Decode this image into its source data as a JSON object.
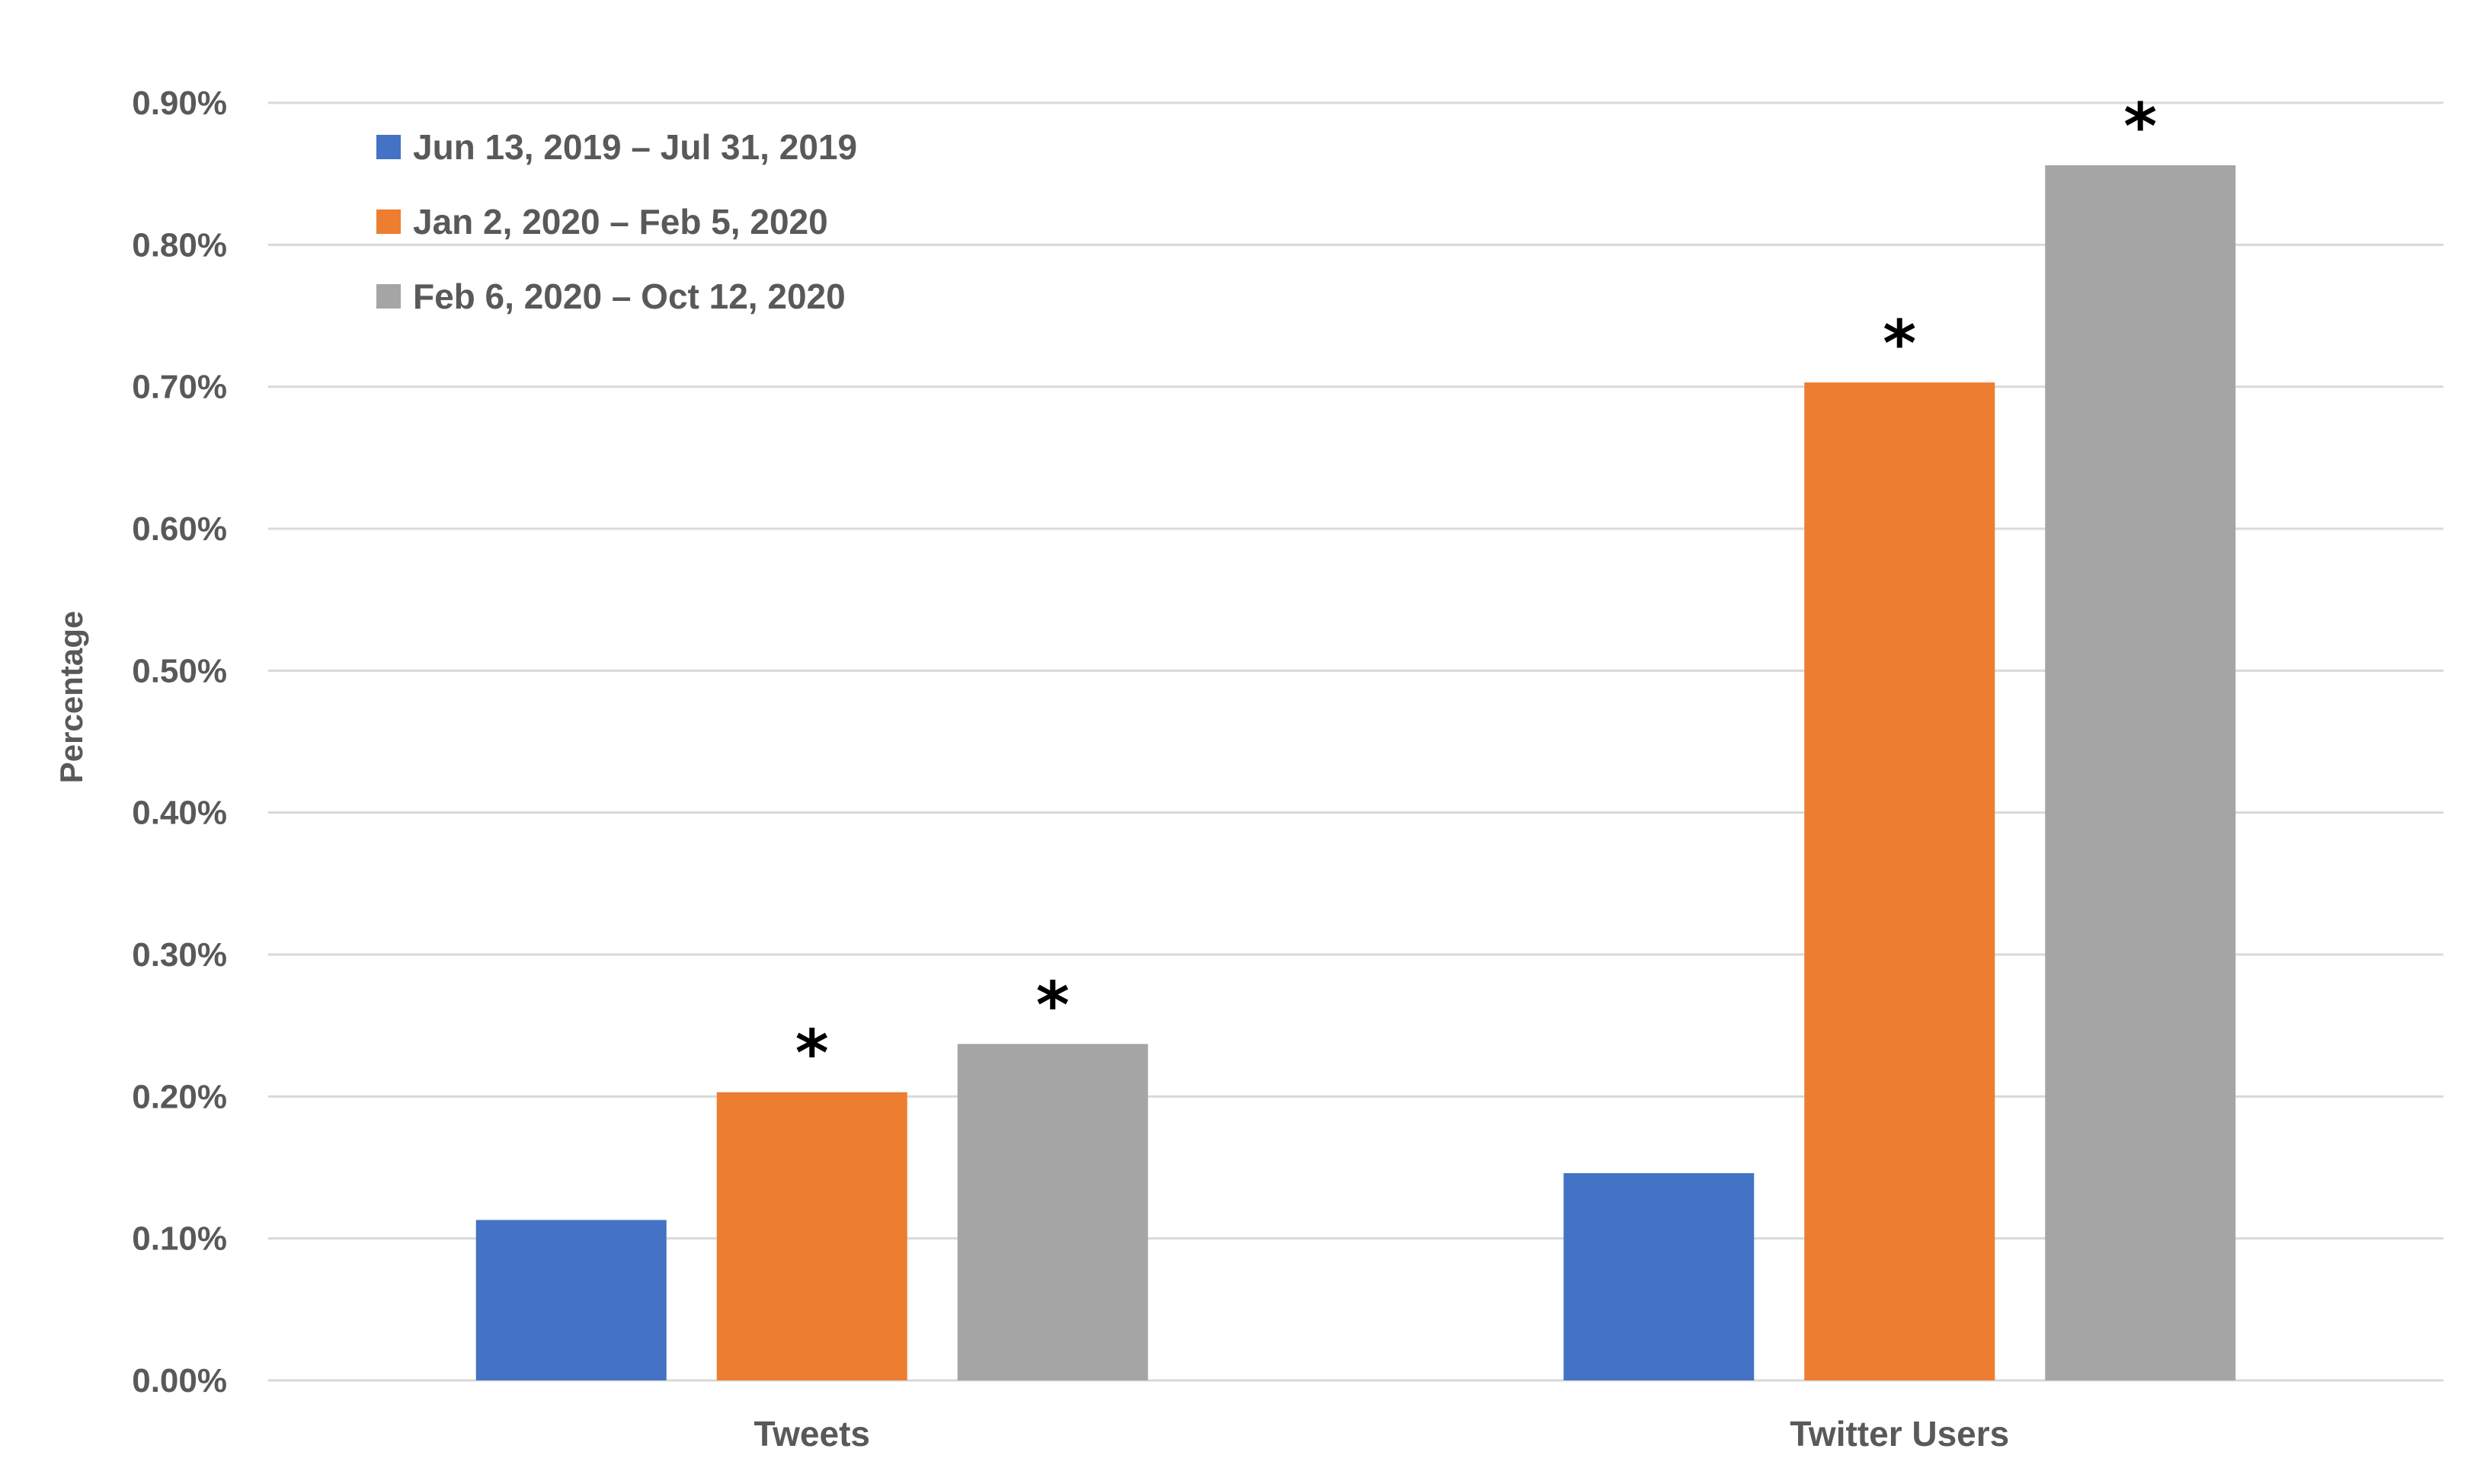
{
  "chart_data": {
    "type": "bar",
    "title": "",
    "xlabel": "",
    "ylabel": "Percentage",
    "ylim": [
      0,
      0.9
    ],
    "y_unit": "%",
    "y_ticks": [
      0.0,
      0.1,
      0.2,
      0.3,
      0.4,
      0.5,
      0.6,
      0.7,
      0.8,
      0.9
    ],
    "y_tick_labels": [
      "0.00%",
      "0.10%",
      "0.20%",
      "0.30%",
      "0.40%",
      "0.50%",
      "0.60%",
      "0.70%",
      "0.80%",
      "0.90%"
    ],
    "grid": true,
    "legend_position": "top-left",
    "categories": [
      "Tweets",
      "Twitter Users"
    ],
    "series": [
      {
        "name": "Jun 13, 2019 – Jul 31, 2019",
        "color": "#4472C4",
        "values": [
          0.113,
          0.146
        ],
        "markers": [
          "",
          ""
        ]
      },
      {
        "name": "Jan 2, 2020 – Feb 5, 2020",
        "color": "#ED7D31",
        "values": [
          0.203,
          0.703
        ],
        "markers": [
          "*",
          "*"
        ]
      },
      {
        "name": "Feb 6, 2020 – Oct 12, 2020",
        "color": "#A5A5A5",
        "values": [
          0.237,
          0.856
        ],
        "markers": [
          "*",
          "*"
        ]
      }
    ]
  }
}
